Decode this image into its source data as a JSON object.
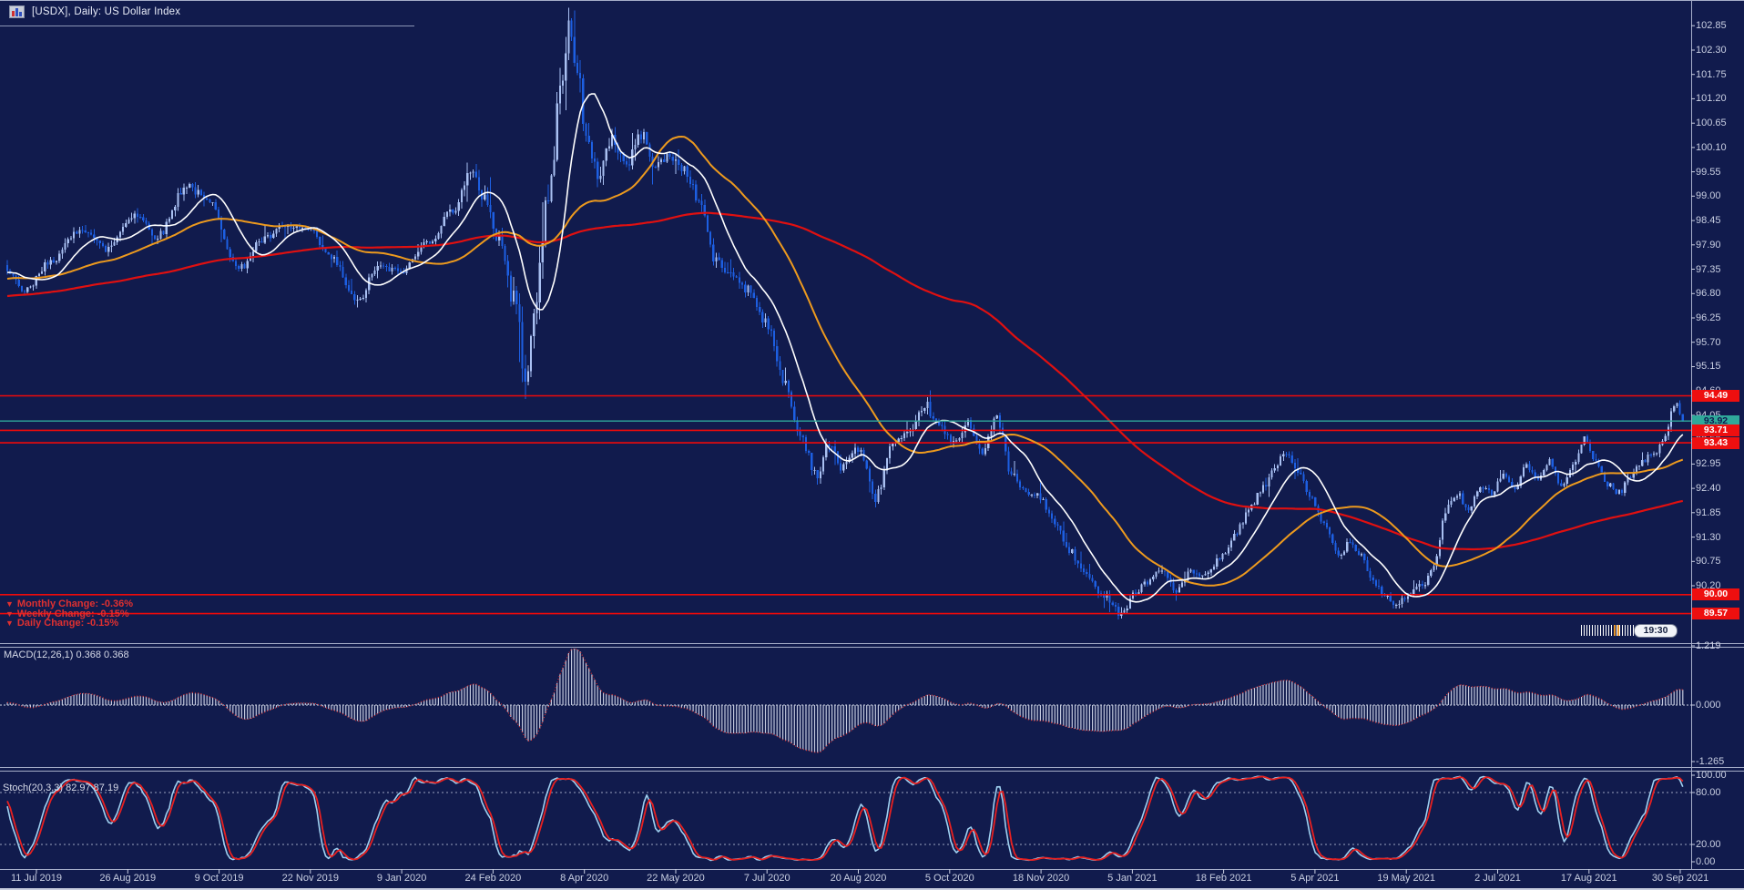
{
  "window": {
    "title": "[USDX], Daily:  US Dollar Index"
  },
  "change_panel": {
    "arrow": "▼",
    "monthly": "Monthly Change:  -0.36%",
    "weekly": "Weekly Change:  -0.15%",
    "daily": "Daily Change:  -0.15%"
  },
  "indicators": {
    "macd_label": "MACD(12,26,1) 0.368 0.368",
    "stoch_label": "Stoch(20,3,3) 82.97 87.19"
  },
  "countdown": {
    "time": "19:30"
  },
  "price_axis": {
    "ticks": [
      102.85,
      102.3,
      101.75,
      101.2,
      100.65,
      100.1,
      99.55,
      99.0,
      98.45,
      97.9,
      97.35,
      96.8,
      96.25,
      95.7,
      95.15,
      94.6,
      94.05,
      93.5,
      92.95,
      92.4,
      91.85,
      91.3,
      90.75,
      90.2
    ],
    "tags": [
      {
        "price": 94.49,
        "style": "red"
      },
      {
        "price": 93.92,
        "style": "teal"
      },
      {
        "price": 93.71,
        "style": "red"
      },
      {
        "price": 93.43,
        "style": "red"
      },
      {
        "price": 90.0,
        "style": "red"
      },
      {
        "price": 89.57,
        "style": "red"
      }
    ]
  },
  "time_axis": {
    "labels": [
      "11 Jul 2019",
      "26 Aug 2019",
      "9 Oct 2019",
      "22 Nov 2019",
      "9 Jan 2020",
      "24 Feb 2020",
      "8 Apr 2020",
      "22 May 2020",
      "7 Jul 2020",
      "20 Aug 2020",
      "5 Oct 2020",
      "18 Nov 2020",
      "5 Jan 2021",
      "18 Feb 2021",
      "5 Apr 2021",
      "19 May 2021",
      "2 Jul 2021",
      "17 Aug 2021",
      "30 Sep 2021"
    ]
  },
  "macd_axis": {
    "ticks": [
      "1.219",
      "0.000",
      "-1.265"
    ]
  },
  "stoch_axis": {
    "ticks": [
      "100.00",
      "80.00",
      "20.00",
      "0.00"
    ]
  },
  "colors": {
    "background": "#111B4D",
    "frame": "#A6AEC9",
    "candle_up": "#A9C0F2",
    "candle_down": "#1D5FE2",
    "ma_fast": "#FFFFFF",
    "ma_medium": "#ED9A1E",
    "ma_slow": "#E01010",
    "level_red": "#F00A0A",
    "current_teal": "#2FA99A",
    "axis_text": "#C9CFE2",
    "tag_red_bg": "#EE0F0F",
    "tag_red_text": "#FFFFFF",
    "tag_teal_bg": "#2FA99A",
    "tag_teal_text": "#0E1A4E",
    "macd_bar": "#C3C9DE",
    "macd_line": "#E03030",
    "stoch_k": "#9FD0F0",
    "stoch_d": "#E82020",
    "dashed_level": "#9AA3C0",
    "change_text": "#E03030"
  },
  "chart_data": {
    "type": "candlestick",
    "symbol": "USDX",
    "timeframe": "Daily",
    "title": "US Dollar Index",
    "num_candles": 580,
    "x_labels": [
      "11 Jul 2019",
      "26 Aug 2019",
      "9 Oct 2019",
      "22 Nov 2019",
      "9 Jan 2020",
      "24 Feb 2020",
      "8 Apr 2020",
      "22 May 2020",
      "7 Jul 2020",
      "20 Aug 2020",
      "5 Oct 2020",
      "18 Nov 2020",
      "5 Jan 2021",
      "18 Feb 2021",
      "5 Apr 2021",
      "19 May 2021",
      "2 Jul 2021",
      "17 Aug 2021",
      "30 Sep 2021"
    ],
    "y_ticks": [
      102.85,
      102.3,
      101.75,
      101.2,
      100.65,
      100.1,
      99.55,
      99.0,
      98.45,
      97.9,
      97.35,
      96.8,
      96.25,
      95.7,
      95.15,
      94.6,
      94.05,
      93.5,
      92.95,
      92.4,
      91.85,
      91.3,
      90.75,
      90.2
    ],
    "y_range_visible": [
      89.3,
      103.1
    ],
    "last_close": 93.92,
    "current_price": 93.92,
    "horizontal_levels": [
      94.49,
      93.71,
      93.43,
      90.0,
      89.57
    ],
    "moving_averages": [
      {
        "name": "fast",
        "period": 14,
        "color": "#FFFFFF"
      },
      {
        "name": "medium",
        "period": 45,
        "color": "#ED9A1E"
      },
      {
        "name": "slow",
        "period": 150,
        "color": "#E01010"
      }
    ],
    "macd": {
      "params": [
        12,
        26,
        1
      ],
      "current": [
        0.368,
        0.368
      ],
      "axis": [
        1.219,
        0.0,
        -1.265
      ]
    },
    "stochastic": {
      "params": [
        20,
        3,
        3
      ],
      "current": [
        82.97,
        87.19
      ],
      "axis": [
        100.0,
        80.0,
        20.0,
        0.0
      ],
      "bands": [
        80,
        20
      ]
    },
    "changes": {
      "monthly_pct": -0.36,
      "weekly_pct": -0.15,
      "daily_pct": -0.15
    },
    "price_keyframes": [
      [
        0,
        97.25,
        0.15
      ],
      [
        6,
        96.85,
        0.15
      ],
      [
        16,
        97.6,
        0.16
      ],
      [
        26,
        98.3,
        0.18
      ],
      [
        34,
        97.8,
        0.15
      ],
      [
        44,
        98.6,
        0.18
      ],
      [
        52,
        98.1,
        0.15
      ],
      [
        62,
        99.25,
        0.18
      ],
      [
        70,
        98.85,
        0.15
      ],
      [
        80,
        97.35,
        0.15
      ],
      [
        88,
        98.0,
        0.14
      ],
      [
        96,
        98.3,
        0.14
      ],
      [
        104,
        98.25,
        0.12
      ],
      [
        112,
        97.6,
        0.13
      ],
      [
        121,
        96.6,
        0.15
      ],
      [
        128,
        97.4,
        0.13
      ],
      [
        136,
        97.3,
        0.12
      ],
      [
        146,
        98.0,
        0.13
      ],
      [
        154,
        98.7,
        0.15
      ],
      [
        160,
        99.5,
        0.2
      ],
      [
        165,
        99.0,
        0.28
      ],
      [
        170,
        98.0,
        0.38
      ],
      [
        175,
        96.7,
        0.48
      ],
      [
        179,
        95.1,
        0.55
      ],
      [
        183,
        96.8,
        0.6
      ],
      [
        187,
        99.0,
        0.62
      ],
      [
        191,
        101.3,
        0.55
      ],
      [
        194,
        102.8,
        0.5
      ],
      [
        197,
        102.0,
        0.42
      ],
      [
        200,
        100.2,
        0.38
      ],
      [
        204,
        99.5,
        0.3
      ],
      [
        209,
        100.3,
        0.25
      ],
      [
        214,
        99.7,
        0.22
      ],
      [
        219,
        100.4,
        0.22
      ],
      [
        224,
        99.7,
        0.2
      ],
      [
        229,
        99.9,
        0.18
      ],
      [
        234,
        99.6,
        0.18
      ],
      [
        239,
        98.9,
        0.2
      ],
      [
        245,
        97.5,
        0.2
      ],
      [
        251,
        97.2,
        0.18
      ],
      [
        256,
        96.9,
        0.18
      ],
      [
        262,
        96.2,
        0.2
      ],
      [
        268,
        94.9,
        0.22
      ],
      [
        274,
        93.6,
        0.22
      ],
      [
        280,
        92.7,
        0.2
      ],
      [
        284,
        93.4,
        0.18
      ],
      [
        288,
        92.9,
        0.18
      ],
      [
        294,
        93.3,
        0.17
      ],
      [
        300,
        92.2,
        0.18
      ],
      [
        306,
        93.4,
        0.17
      ],
      [
        312,
        93.6,
        0.16
      ],
      [
        317,
        94.3,
        0.18
      ],
      [
        322,
        93.8,
        0.16
      ],
      [
        327,
        93.4,
        0.15
      ],
      [
        332,
        93.9,
        0.15
      ],
      [
        337,
        93.2,
        0.15
      ],
      [
        342,
        94.0,
        0.17
      ],
      [
        347,
        92.7,
        0.16
      ],
      [
        352,
        92.3,
        0.14
      ],
      [
        357,
        92.2,
        0.13
      ],
      [
        362,
        91.6,
        0.14
      ],
      [
        367,
        91.0,
        0.14
      ],
      [
        372,
        90.5,
        0.14
      ],
      [
        377,
        90.1,
        0.13
      ],
      [
        381,
        89.9,
        0.14
      ],
      [
        385,
        89.55,
        0.16
      ],
      [
        389,
        90.0,
        0.13
      ],
      [
        394,
        90.3,
        0.13
      ],
      [
        399,
        90.55,
        0.13
      ],
      [
        404,
        90.1,
        0.13
      ],
      [
        409,
        90.5,
        0.12
      ],
      [
        414,
        90.4,
        0.12
      ],
      [
        419,
        90.8,
        0.13
      ],
      [
        424,
        91.3,
        0.13
      ],
      [
        429,
        91.9,
        0.13
      ],
      [
        434,
        92.4,
        0.13
      ],
      [
        438,
        92.9,
        0.13
      ],
      [
        442,
        93.2,
        0.13
      ],
      [
        446,
        92.8,
        0.13
      ],
      [
        450,
        92.2,
        0.13
      ],
      [
        455,
        91.6,
        0.13
      ],
      [
        460,
        90.9,
        0.13
      ],
      [
        464,
        91.2,
        0.12
      ],
      [
        468,
        90.9,
        0.12
      ],
      [
        472,
        90.3,
        0.12
      ],
      [
        476,
        90.0,
        0.12
      ],
      [
        480,
        89.75,
        0.13
      ],
      [
        484,
        90.0,
        0.11
      ],
      [
        489,
        90.2,
        0.11
      ],
      [
        493,
        90.6,
        0.13
      ],
      [
        497,
        91.9,
        0.15
      ],
      [
        501,
        92.3,
        0.13
      ],
      [
        505,
        91.9,
        0.11
      ],
      [
        509,
        92.4,
        0.11
      ],
      [
        513,
        92.3,
        0.11
      ],
      [
        517,
        92.7,
        0.11
      ],
      [
        521,
        92.4,
        0.11
      ],
      [
        525,
        92.9,
        0.11
      ],
      [
        529,
        92.6,
        0.11
      ],
      [
        533,
        93.0,
        0.11
      ],
      [
        537,
        92.5,
        0.11
      ],
      [
        541,
        92.9,
        0.11
      ],
      [
        545,
        93.5,
        0.12
      ],
      [
        549,
        93.0,
        0.11
      ],
      [
        553,
        92.5,
        0.11
      ],
      [
        557,
        92.3,
        0.11
      ],
      [
        561,
        92.7,
        0.11
      ],
      [
        565,
        93.0,
        0.11
      ],
      [
        569,
        93.2,
        0.11
      ],
      [
        573,
        93.6,
        0.13
      ],
      [
        576,
        94.35,
        0.16
      ],
      [
        579,
        93.92,
        0.13
      ]
    ]
  }
}
